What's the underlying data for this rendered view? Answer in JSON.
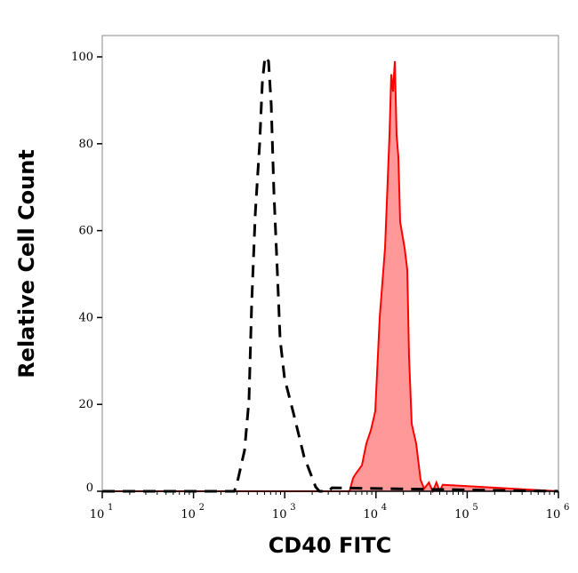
{
  "chart_data": {
    "type": "area",
    "title": "",
    "xlabel": "CD40 FITC",
    "ylabel": "Relative Cell Count",
    "xscale": "log",
    "xlim": [
      10,
      1000000
    ],
    "ylim": [
      0,
      100
    ],
    "xticks": [
      {
        "base": "10",
        "exp": "1",
        "value": 10
      },
      {
        "base": "10",
        "exp": "2",
        "value": 100
      },
      {
        "base": "10",
        "exp": "3",
        "value": 1000
      },
      {
        "base": "10",
        "exp": "4",
        "value": 10000
      },
      {
        "base": "10",
        "exp": "5",
        "value": 100000
      },
      {
        "base": "10",
        "exp": "6",
        "value": 1000000
      }
    ],
    "yticks": [
      0,
      20,
      40,
      60,
      80,
      100
    ],
    "grid": false,
    "series": [
      {
        "style": "dashed-line",
        "color": "#000000",
        "x": [
          10,
          280,
          302,
          363,
          406,
          434,
          476,
          531,
          568,
          608,
          665,
          711,
          761,
          832,
          889,
          995,
          1245,
          1629,
          2182,
          2400,
          3000,
          3300,
          1000000
        ],
        "y": [
          0,
          0,
          2,
          9.4,
          21,
          43,
          64,
          80,
          94,
          100,
          99,
          89,
          69,
          50,
          35,
          26,
          18,
          8,
          1,
          0,
          0,
          0.8,
          0
        ]
      },
      {
        "style": "filled",
        "color": "#ff0000",
        "fill": "#ff9999",
        "x": [
          10,
          5130,
          5600,
          5998,
          7020,
          7850,
          8780,
          9820,
          10990,
          12570,
          14060,
          14720,
          15390,
          16110,
          16840,
          17610,
          18420,
          20600,
          22030,
          23060,
          24650,
          27560,
          30830,
          33730,
          38000,
          42000,
          46000,
          50000,
          54000,
          1000000
        ],
        "y": [
          0,
          0,
          3,
          4,
          6,
          11,
          14,
          18.4,
          40,
          56,
          82,
          96,
          92,
          99,
          82,
          77,
          62,
          56,
          51,
          31,
          15.5,
          11,
          2.6,
          0.6,
          2,
          0,
          2,
          0,
          1.5,
          0
        ]
      }
    ]
  }
}
